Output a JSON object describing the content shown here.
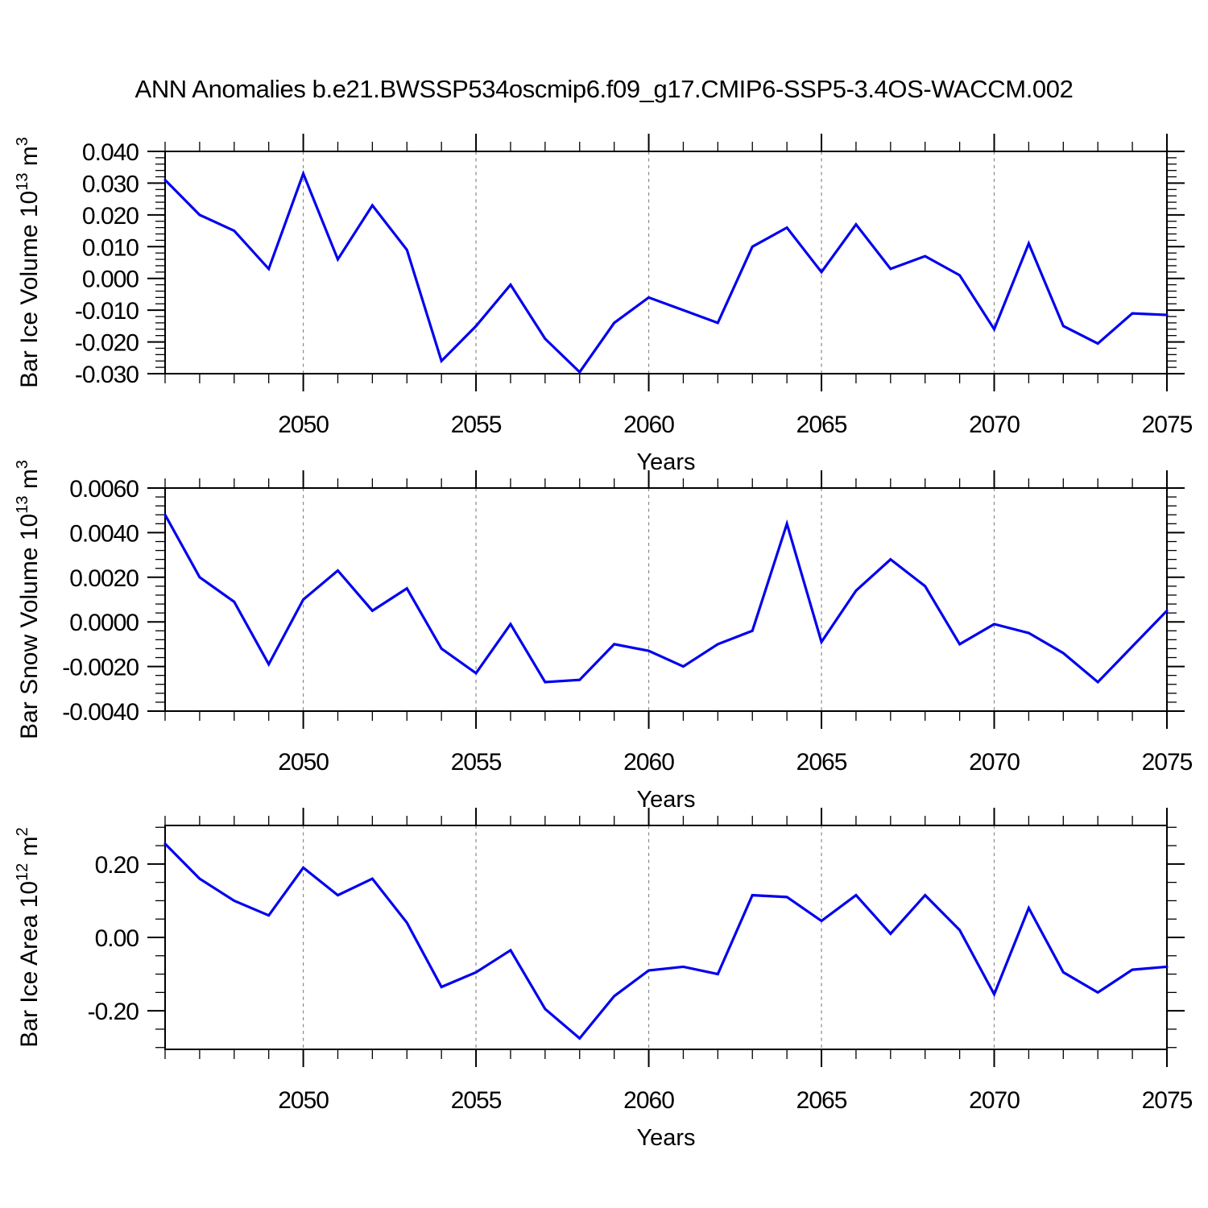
{
  "title": "ANN Anomalies b.e21.BWSSP534oscmip6.f09_g17.CMIP6-SSP5-3.4OS-WACCM.002",
  "colors": {
    "line": "#0000ee",
    "grid": "#8a8a8a",
    "axis": "#000000"
  },
  "chart_data": [
    {
      "type": "line",
      "name": "ice-volume",
      "ylabel": "Bar Ice Volume 10^13 m^3",
      "ylabel_parts": [
        {
          "t": "Bar Ice Volume 10"
        },
        {
          "t": "13",
          "sup": true
        },
        {
          "t": " m"
        },
        {
          "t": "3",
          "sup": true
        }
      ],
      "xlabel": "Years",
      "xlim": [
        2046,
        2075
      ],
      "ylim": [
        -0.03,
        0.04
      ],
      "x": [
        2046,
        2047,
        2048,
        2049,
        2050,
        2051,
        2052,
        2053,
        2054,
        2055,
        2056,
        2057,
        2058,
        2059,
        2060,
        2061,
        2062,
        2063,
        2064,
        2065,
        2066,
        2067,
        2068,
        2069,
        2070,
        2071,
        2072,
        2073,
        2074,
        2075
      ],
      "values": [
        0.031,
        0.02,
        0.015,
        0.003,
        0.033,
        0.006,
        0.023,
        0.009,
        -0.026,
        -0.015,
        -0.002,
        -0.019,
        -0.0295,
        -0.014,
        -0.006,
        -0.01,
        -0.014,
        0.01,
        0.016,
        0.002,
        0.017,
        0.003,
        0.007,
        0.001,
        -0.016,
        0.011,
        -0.015,
        -0.0205,
        -0.011,
        -0.0115
      ],
      "ytick_values": [
        0.04,
        0.03,
        0.02,
        0.01,
        0.0,
        -0.01,
        -0.02,
        -0.03
      ],
      "ytick_labels": [
        "0.040",
        "0.030",
        "0.020",
        "0.010",
        "0.000",
        "-0.010",
        "-0.020",
        "-0.030"
      ],
      "ytick_minor_step": 0.002,
      "xtick_major": [
        2050,
        2055,
        2060,
        2065,
        2070,
        2075
      ],
      "xtick_labels": [
        "2050",
        "2055",
        "2060",
        "2065",
        "2070",
        "2075"
      ],
      "xtick_minor_step": 1,
      "grid_x": [
        2050,
        2055,
        2060,
        2065,
        2070
      ],
      "grid_style": "vertical-dashed",
      "legend": "none"
    },
    {
      "type": "line",
      "name": "snow-volume",
      "ylabel": "Bar Snow Volume 10^13 m^3",
      "ylabel_parts": [
        {
          "t": "Bar Snow Volume 10"
        },
        {
          "t": "13",
          "sup": true
        },
        {
          "t": " m"
        },
        {
          "t": "3",
          "sup": true
        }
      ],
      "xlabel": "Years",
      "xlim": [
        2046,
        2075
      ],
      "ylim": [
        -0.004,
        0.006
      ],
      "x": [
        2046,
        2047,
        2048,
        2049,
        2050,
        2051,
        2052,
        2053,
        2054,
        2055,
        2056,
        2057,
        2058,
        2059,
        2060,
        2061,
        2062,
        2063,
        2064,
        2065,
        2066,
        2067,
        2068,
        2069,
        2070,
        2071,
        2072,
        2073,
        2074,
        2075
      ],
      "values": [
        0.0048,
        0.002,
        0.0009,
        -0.0019,
        0.001,
        0.0023,
        0.0005,
        0.0015,
        -0.0012,
        -0.0023,
        -0.0001,
        -0.0027,
        -0.0026,
        -0.001,
        -0.0013,
        -0.002,
        -0.001,
        -0.0004,
        0.0044,
        -0.0009,
        0.0014,
        0.0028,
        0.0016,
        -0.001,
        -0.0001,
        -0.0005,
        -0.0014,
        -0.0027,
        -0.0011,
        0.0005
      ],
      "ytick_values": [
        0.006,
        0.004,
        0.002,
        0.0,
        -0.002,
        -0.004
      ],
      "ytick_labels": [
        "0.0060",
        "0.0040",
        "0.0020",
        "0.0000",
        "-0.0020",
        "-0.0040"
      ],
      "ytick_minor_step": 0.0004,
      "xtick_major": [
        2050,
        2055,
        2060,
        2065,
        2070,
        2075
      ],
      "xtick_labels": [
        "2050",
        "2055",
        "2060",
        "2065",
        "2070",
        "2075"
      ],
      "xtick_minor_step": 1,
      "grid_x": [
        2050,
        2055,
        2060,
        2065,
        2070
      ],
      "grid_style": "vertical-dashed",
      "legend": "none"
    },
    {
      "type": "line",
      "name": "ice-area",
      "ylabel": "Bar Ice Area 10^12 m^2",
      "ylabel_parts": [
        {
          "t": "Bar Ice Area 10"
        },
        {
          "t": "12",
          "sup": true
        },
        {
          "t": " m"
        },
        {
          "t": "2",
          "sup": true
        }
      ],
      "xlabel": "Years",
      "xlim": [
        2046,
        2075
      ],
      "ylim": [
        -0.305,
        0.305
      ],
      "x": [
        2046,
        2047,
        2048,
        2049,
        2050,
        2051,
        2052,
        2053,
        2054,
        2055,
        2056,
        2057,
        2058,
        2059,
        2060,
        2061,
        2062,
        2063,
        2064,
        2065,
        2066,
        2067,
        2068,
        2069,
        2070,
        2071,
        2072,
        2073,
        2074,
        2075
      ],
      "values": [
        0.255,
        0.16,
        0.1,
        0.06,
        0.19,
        0.115,
        0.16,
        0.04,
        -0.135,
        -0.095,
        -0.035,
        -0.195,
        -0.275,
        -0.16,
        -0.09,
        -0.08,
        -0.1,
        0.115,
        0.11,
        0.045,
        0.115,
        0.01,
        0.115,
        0.02,
        -0.155,
        0.08,
        -0.095,
        -0.15,
        -0.088,
        -0.08
      ],
      "ytick_values": [
        0.2,
        0.0,
        -0.2
      ],
      "ytick_labels": [
        "0.20",
        "0.00",
        "-0.20"
      ],
      "ytick_minor_step": 0.05,
      "xtick_major": [
        2050,
        2055,
        2060,
        2065,
        2070,
        2075
      ],
      "xtick_labels": [
        "2050",
        "2055",
        "2060",
        "2065",
        "2070",
        "2075"
      ],
      "xtick_minor_step": 1,
      "grid_x": [
        2050,
        2055,
        2060,
        2065,
        2070
      ],
      "grid_style": "vertical-dashed",
      "legend": "none"
    }
  ]
}
